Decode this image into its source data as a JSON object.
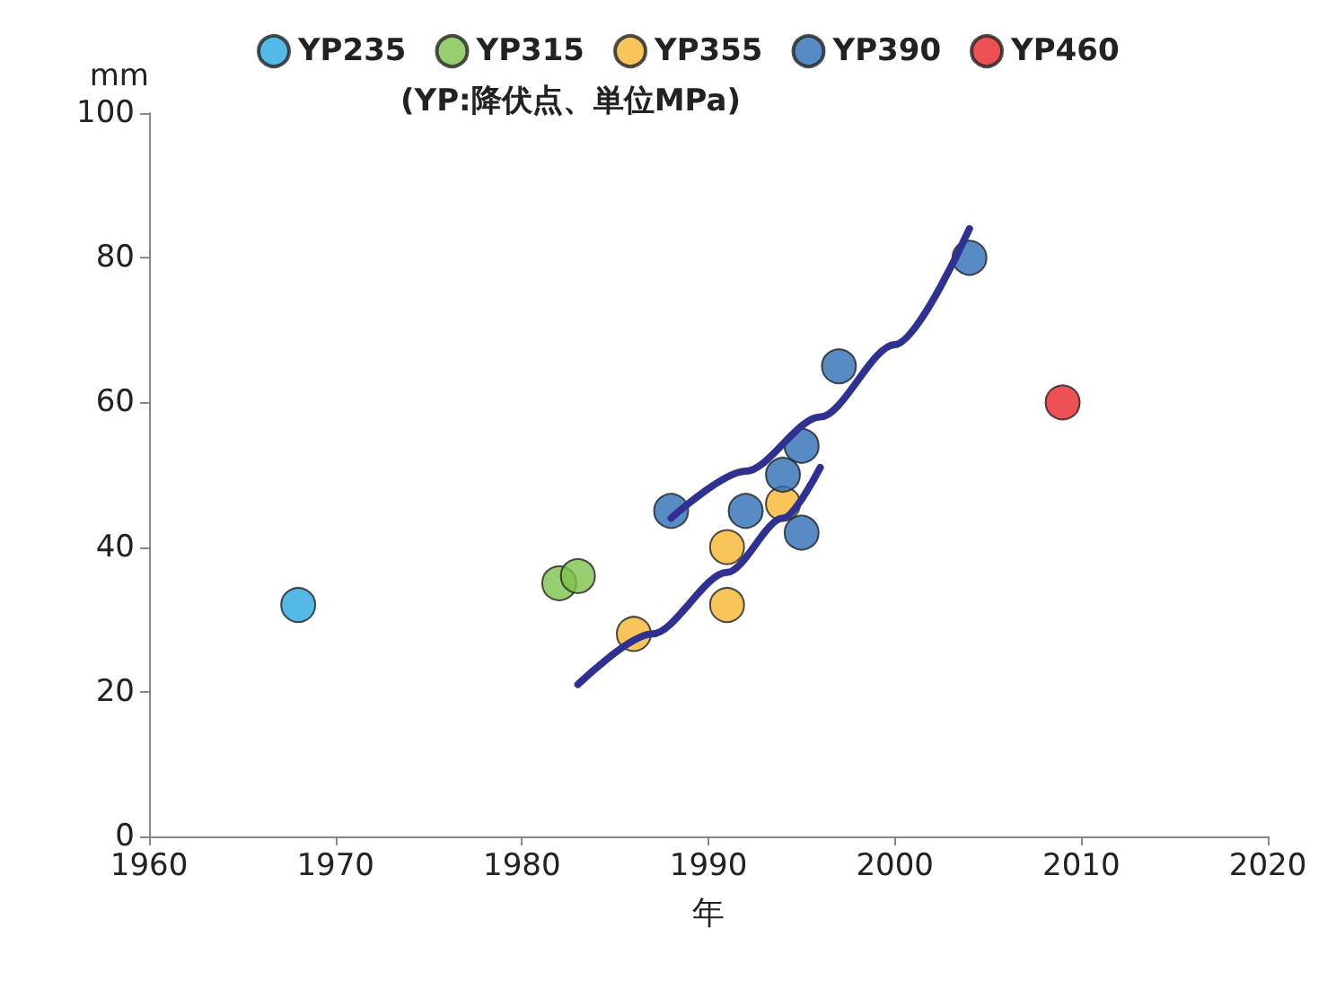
{
  "chart_data": {
    "type": "scatter",
    "xlabel": "年",
    "ylabel": "mm",
    "annotations": [
      "(YP:降伏点、単位MPa)"
    ],
    "xlim": [
      1960,
      2020
    ],
    "xticks": [
      1960,
      1970,
      1980,
      1990,
      2000,
      2010,
      2020
    ],
    "ylim": [
      0,
      100
    ],
    "yticks": [
      0,
      20,
      40,
      60,
      80,
      100
    ],
    "grid": false,
    "legend": "top",
    "marker": "circle",
    "series": [
      {
        "name": "YP235",
        "color": "#29a8e0",
        "x": [
          1968
        ],
        "values": [
          32
        ]
      },
      {
        "name": "YP315",
        "color": "#7dc24b",
        "x": [
          1982,
          1983
        ],
        "values": [
          35,
          36
        ]
      },
      {
        "name": "YP355",
        "color": "#f5b731",
        "x": [
          1986,
          1991,
          1991,
          1994
        ],
        "values": [
          28,
          40,
          32,
          46
        ]
      },
      {
        "name": "YP390",
        "color": "#2e6db4",
        "x": [
          1988,
          1992,
          1994,
          1995,
          1995,
          1997,
          2004
        ],
        "values": [
          45,
          45,
          50,
          54,
          42,
          65,
          80
        ]
      },
      {
        "name": "YP460",
        "color": "#e8262a",
        "x": [
          2009
        ],
        "values": [
          60
        ]
      },
      {
        "type": "line",
        "color": "#2e3192",
        "marker": "none",
        "line_style": "solid",
        "x": [
          1988,
          1992,
          1996,
          2000,
          2004
        ],
        "values": [
          44,
          50.5,
          58,
          68,
          84
        ]
      },
      {
        "type": "line",
        "color": "#2e3192",
        "marker": "none",
        "line_style": "solid",
        "x": [
          1983,
          1987,
          1991,
          1994,
          1996
        ],
        "values": [
          21,
          28,
          36.5,
          44,
          51
        ]
      }
    ]
  }
}
